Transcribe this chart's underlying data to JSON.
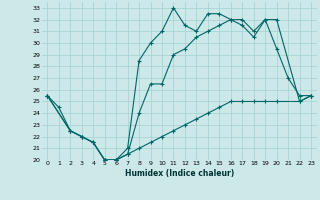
{
  "xlabel": "Humidex (Indice chaleur)",
  "bg_color": "#cce8e8",
  "grid_color": "#aad4d4",
  "line_color": "#006666",
  "xlim": [
    -0.5,
    23.5
  ],
  "ylim": [
    20,
    33.5
  ],
  "yticks": [
    20,
    21,
    22,
    23,
    24,
    25,
    26,
    27,
    28,
    29,
    30,
    31,
    32,
    33
  ],
  "xtick_labels": [
    "0",
    "1",
    "2",
    "3",
    "4",
    "5",
    "6",
    "7",
    "8",
    "9",
    "10",
    "11",
    "12",
    "13",
    "14",
    "15",
    "16",
    "17",
    "18",
    "19",
    "20",
    "21",
    "22",
    "23"
  ],
  "line1_x": [
    0,
    1,
    2,
    3,
    4,
    5,
    6,
    7,
    8,
    9,
    10,
    11,
    12,
    13,
    14,
    15,
    16,
    17,
    18,
    19,
    20,
    21,
    22,
    23
  ],
  "line1_y": [
    25.5,
    24.5,
    22.5,
    22.0,
    21.5,
    20.0,
    20.0,
    21.0,
    28.5,
    30.0,
    31.0,
    33.0,
    31.5,
    31.0,
    32.5,
    32.5,
    32.0,
    31.5,
    30.5,
    32.0,
    29.5,
    27.0,
    25.5,
    25.5
  ],
  "line2_x": [
    0,
    2,
    3,
    4,
    5,
    6,
    7,
    8,
    9,
    10,
    11,
    12,
    13,
    14,
    15,
    16,
    17,
    18,
    19,
    20,
    22,
    23
  ],
  "line2_y": [
    25.5,
    22.5,
    22.0,
    21.5,
    20.0,
    20.0,
    20.5,
    24.0,
    26.5,
    26.5,
    29.0,
    29.5,
    30.5,
    31.0,
    31.5,
    32.0,
    32.0,
    31.0,
    32.0,
    32.0,
    25.0,
    25.5
  ],
  "line3_x": [
    0,
    2,
    3,
    4,
    5,
    6,
    7,
    8,
    9,
    10,
    11,
    12,
    13,
    14,
    15,
    16,
    17,
    18,
    19,
    20,
    22,
    23
  ],
  "line3_y": [
    25.5,
    22.5,
    22.0,
    21.5,
    20.0,
    20.0,
    20.5,
    21.0,
    21.5,
    22.0,
    22.5,
    23.0,
    23.5,
    24.0,
    24.5,
    25.0,
    25.0,
    25.0,
    25.0,
    25.0,
    25.0,
    25.5
  ]
}
